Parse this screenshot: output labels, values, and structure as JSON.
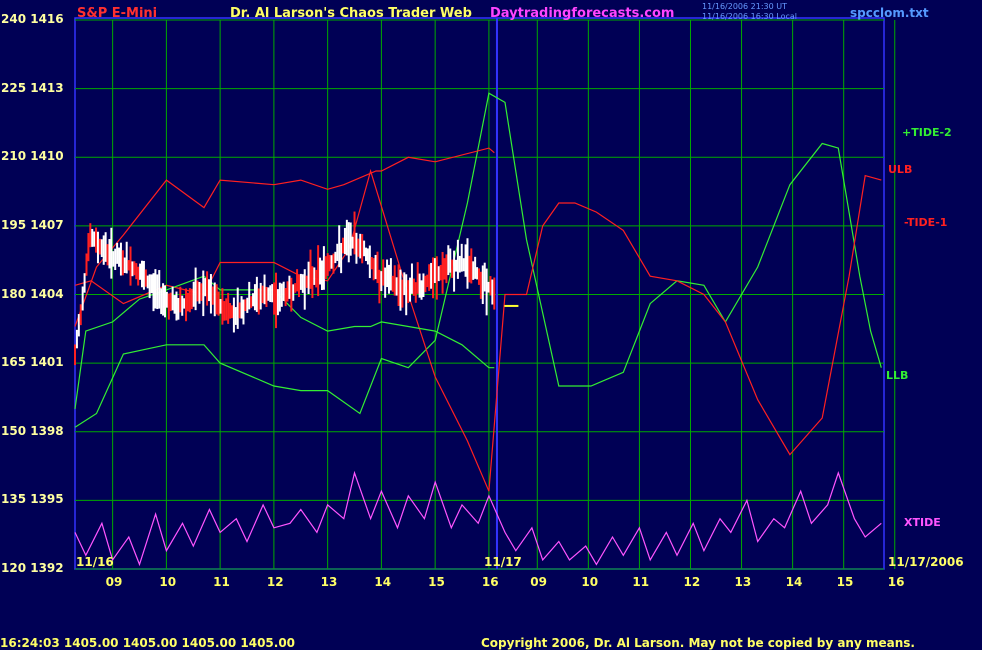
{
  "header": {
    "symbol": "S&P E-Mini",
    "title": "Dr. Al Larson's Chaos Trader Web",
    "site": "Daytradingforecasts.com",
    "stamp1": "11/16/2006 21:30 UT",
    "stamp2": "11/16/2006 16:30 Local",
    "file": "spcclom.txt"
  },
  "footer": {
    "quote": "16:24:03  1405.00  1405.00  1405.00  1405.00",
    "copyright": "Copyright 2006, Dr. Al Larson. May not be copied by any means."
  },
  "colors": {
    "background": "#000055",
    "grid": "#00aa00",
    "divider": "#3333ff",
    "red": "#ff2020",
    "green": "#33ee33",
    "magenta": "#ff55ff",
    "white": "#ffffff",
    "yellow": "#ffff33"
  },
  "chart_data": {
    "type": "line",
    "title": "Dr. Al Larson's Chaos Trader Web",
    "y_left": [
      240,
      225,
      210,
      195,
      180,
      165,
      150,
      135,
      120
    ],
    "y_right": [
      1416,
      1413,
      1410,
      1407,
      1404,
      1401,
      1398,
      1395,
      1392
    ],
    "ylim_osc": [
      120,
      240
    ],
    "ylim_price": [
      1392,
      1416
    ],
    "x_ticks": [
      "09",
      "10",
      "11",
      "12",
      "13",
      "14",
      "15",
      "16",
      "09",
      "10",
      "11",
      "12",
      "13",
      "14",
      "15",
      "16"
    ],
    "date_labels": [
      "11/16",
      "11/17",
      "11/17/2006"
    ],
    "legend": [
      "+TIDE-2",
      "ULB",
      "-TIDE-1",
      "LLB",
      "XTIDE"
    ],
    "series": [
      {
        "name": "+TIDE-2",
        "color": "green",
        "x": [
          8.3,
          8.7,
          9.2,
          10.0,
          10.7,
          11.0,
          12.0,
          12.5,
          13.0,
          13.6,
          14.0,
          14.5,
          15.0,
          15.6,
          16.0,
          16.3,
          16.7,
          17.3,
          17.9,
          18.5,
          19.0,
          19.5,
          20.0,
          20.4,
          21.0,
          21.6,
          22.2,
          22.5,
          22.9,
          23.1,
          23.3
        ],
        "y": [
          151,
          154,
          167,
          169,
          169,
          165,
          160,
          159,
          159,
          154,
          166,
          164,
          170,
          200,
          224,
          222,
          192,
          160,
          160,
          163,
          178,
          183,
          182,
          174,
          186,
          204,
          213,
          212,
          184,
          172,
          164
        ]
      },
      {
        "name": "ULB",
        "color": "red",
        "x": [
          8.3,
          8.7,
          9.2,
          10.0,
          10.7,
          11.0,
          12.0,
          12.5,
          13.0,
          13.3,
          13.9,
          14.0,
          14.5,
          15.0,
          16.0,
          16.1
        ],
        "y": [
          173,
          186,
          193,
          205,
          199,
          205,
          204,
          205,
          203,
          204,
          207,
          207,
          210,
          209,
          212,
          211
        ]
      },
      {
        "name": "-TIDE-1",
        "color": "red",
        "x": [
          8.3,
          8.6,
          9.2,
          10.0,
          10.7,
          11.0,
          12.0,
          12.5,
          13.0,
          13.4,
          13.8,
          14.5,
          15.0,
          15.6,
          16.0,
          16.3,
          16.7,
          17.0,
          17.3,
          17.6,
          18.0,
          18.5,
          19.0,
          19.5,
          20.0,
          20.4,
          21.0,
          21.6,
          22.2,
          22.7,
          23.0,
          23.3
        ],
        "y": [
          182,
          183,
          178,
          182,
          180,
          187,
          187,
          184,
          183,
          190,
          207,
          180,
          162,
          148,
          137,
          180,
          180,
          195,
          200,
          200,
          198,
          194,
          184,
          183,
          180,
          174,
          157,
          145,
          153,
          184,
          206,
          205
        ]
      },
      {
        "name": "LLB",
        "color": "green",
        "x": [
          8.3,
          8.5,
          9.0,
          9.5,
          10.0,
          10.7,
          11.0,
          12.0,
          12.5,
          13.0,
          13.5,
          13.8,
          14.0,
          14.5,
          15.0,
          15.5,
          16.0,
          16.1
        ],
        "y": [
          155,
          172,
          174,
          179,
          181,
          184,
          181,
          181,
          175,
          172,
          173,
          173,
          174,
          173,
          172,
          169,
          164,
          164
        ]
      },
      {
        "name": "XTIDE",
        "color": "magenta",
        "x": [
          8.3,
          8.5,
          8.8,
          9.0,
          9.3,
          9.5,
          9.8,
          10.0,
          10.3,
          10.5,
          10.8,
          11.0,
          11.3,
          11.5,
          11.8,
          12.0,
          12.3,
          12.5,
          12.8,
          13.0,
          13.3,
          13.5,
          13.8,
          14.0,
          14.3,
          14.5,
          14.8,
          15.0,
          15.3,
          15.5,
          15.8,
          16.0,
          16.3,
          16.5,
          16.8,
          17.0,
          17.3,
          17.5,
          17.8,
          18.0,
          18.3,
          18.5,
          18.8,
          19.0,
          19.3,
          19.5,
          19.8,
          20.0,
          20.3,
          20.5,
          20.8,
          21.0,
          21.3,
          21.5,
          21.8,
          22.0,
          22.3,
          22.5,
          22.8,
          23.0,
          23.3
        ],
        "y": [
          128,
          123,
          130,
          122,
          127,
          121,
          132,
          124,
          130,
          125,
          133,
          128,
          131,
          126,
          134,
          129,
          130,
          133,
          128,
          134,
          131,
          141,
          131,
          137,
          129,
          136,
          131,
          139,
          129,
          134,
          130,
          136,
          128,
          124,
          129,
          122,
          126,
          122,
          125,
          121,
          127,
          123,
          129,
          122,
          128,
          123,
          130,
          124,
          131,
          128,
          135,
          126,
          131,
          129,
          137,
          130,
          134,
          141,
          131,
          127,
          130
        ]
      }
    ],
    "price_bars": {
      "color": "white",
      "x_range": [
        8.3,
        16.1
      ],
      "values_1404_to_1408": true
    },
    "divider_x": 16.15,
    "marker": {
      "color": "yellow",
      "x": 16.4,
      "price": 1403.5
    }
  }
}
